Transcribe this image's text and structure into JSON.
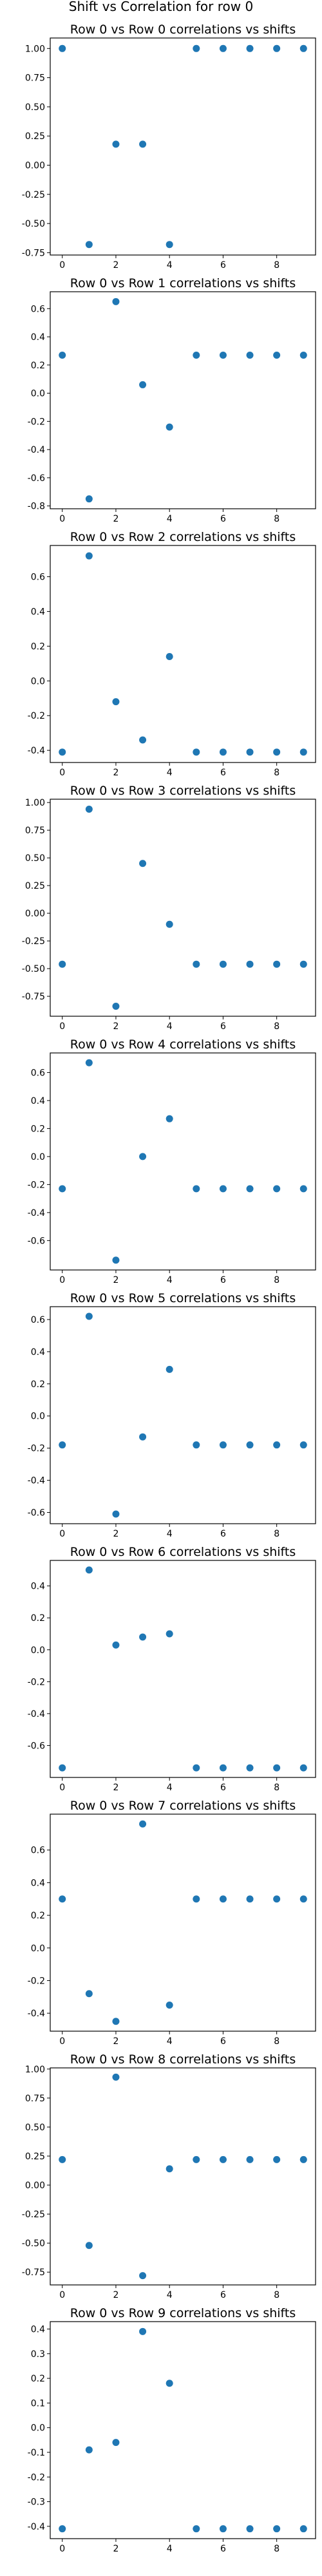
{
  "figure": {
    "suptitle": "Shift vs Correlation for row 0"
  },
  "chart_data": [
    {
      "type": "scatter",
      "title": "Row 0 vs Row 0 correlations vs shifts",
      "x": [
        0,
        1,
        2,
        3,
        4,
        5,
        6,
        7,
        8,
        9
      ],
      "y": [
        1.0,
        -0.68,
        0.18,
        0.18,
        -0.68,
        1.0,
        1.0,
        1.0,
        1.0,
        1.0
      ],
      "xlim": [
        -0.45,
        9.45
      ],
      "ylim": [
        -0.77,
        1.09
      ],
      "xticks": [
        0,
        2,
        4,
        6,
        8
      ],
      "yticks": [
        -0.75,
        -0.5,
        -0.25,
        0.0,
        0.25,
        0.5,
        0.75,
        1.0
      ],
      "ytick_labels": [
        "-0.75",
        "-0.50",
        "-0.25",
        "0.00",
        "0.25",
        "0.50",
        "0.75",
        "1.00"
      ],
      "marker_color": "#1f77b4"
    },
    {
      "type": "scatter",
      "title": "Row 0 vs Row 1 correlations vs shifts",
      "x": [
        0,
        1,
        2,
        3,
        4,
        5,
        6,
        7,
        8,
        9
      ],
      "y": [
        0.27,
        -0.75,
        0.65,
        0.06,
        -0.24,
        0.27,
        0.27,
        0.27,
        0.27,
        0.27
      ],
      "xlim": [
        -0.45,
        9.45
      ],
      "ylim": [
        -0.82,
        0.72
      ],
      "xticks": [
        0,
        2,
        4,
        6,
        8
      ],
      "yticks": [
        -0.8,
        -0.6,
        -0.4,
        -0.2,
        0.0,
        0.2,
        0.4,
        0.6
      ],
      "ytick_labels": [
        "-0.8",
        "-0.6",
        "-0.4",
        "-0.2",
        "0.0",
        "0.2",
        "0.4",
        "0.6"
      ],
      "marker_color": "#1f77b4"
    },
    {
      "type": "scatter",
      "title": "Row 0 vs Row 2 correlations vs shifts",
      "x": [
        0,
        1,
        2,
        3,
        4,
        5,
        6,
        7,
        8,
        9
      ],
      "y": [
        -0.41,
        0.72,
        -0.12,
        -0.34,
        0.14,
        -0.41,
        -0.41,
        -0.41,
        -0.41,
        -0.41
      ],
      "xlim": [
        -0.45,
        9.45
      ],
      "ylim": [
        -0.47,
        0.78
      ],
      "xticks": [
        0,
        2,
        4,
        6,
        8
      ],
      "yticks": [
        -0.4,
        -0.2,
        0.0,
        0.2,
        0.4,
        0.6
      ],
      "ytick_labels": [
        "-0.4",
        "-0.2",
        "0.0",
        "0.2",
        "0.4",
        "0.6"
      ],
      "marker_color": "#1f77b4"
    },
    {
      "type": "scatter",
      "title": "Row 0 vs Row 3 correlations vs shifts",
      "x": [
        0,
        1,
        2,
        3,
        4,
        5,
        6,
        7,
        8,
        9
      ],
      "y": [
        -0.46,
        0.94,
        -0.84,
        0.45,
        -0.1,
        -0.46,
        -0.46,
        -0.46,
        -0.46,
        -0.46
      ],
      "xlim": [
        -0.45,
        9.45
      ],
      "ylim": [
        -0.93,
        1.03
      ],
      "xticks": [
        0,
        2,
        4,
        6,
        8
      ],
      "yticks": [
        -0.75,
        -0.5,
        -0.25,
        0.0,
        0.25,
        0.5,
        0.75,
        1.0
      ],
      "ytick_labels": [
        "-0.75",
        "-0.50",
        "-0.25",
        "0.00",
        "0.25",
        "0.50",
        "0.75",
        "1.00"
      ],
      "marker_color": "#1f77b4"
    },
    {
      "type": "scatter",
      "title": "Row 0 vs Row 4 correlations vs shifts",
      "x": [
        0,
        1,
        2,
        3,
        4,
        5,
        6,
        7,
        8,
        9
      ],
      "y": [
        -0.23,
        0.67,
        -0.74,
        0.0,
        0.27,
        -0.23,
        -0.23,
        -0.23,
        -0.23,
        -0.23
      ],
      "xlim": [
        -0.45,
        9.45
      ],
      "ylim": [
        -0.81,
        0.74
      ],
      "xticks": [
        0,
        2,
        4,
        6,
        8
      ],
      "yticks": [
        -0.6,
        -0.4,
        -0.2,
        0.0,
        0.2,
        0.4,
        0.6
      ],
      "ytick_labels": [
        "-0.6",
        "-0.4",
        "-0.2",
        "0.0",
        "0.2",
        "0.4",
        "0.6"
      ],
      "marker_color": "#1f77b4"
    },
    {
      "type": "scatter",
      "title": "Row 0 vs Row 5 correlations vs shifts",
      "x": [
        0,
        1,
        2,
        3,
        4,
        5,
        6,
        7,
        8,
        9
      ],
      "y": [
        -0.18,
        0.62,
        -0.61,
        -0.13,
        0.29,
        -0.18,
        -0.18,
        -0.18,
        -0.18,
        -0.18
      ],
      "xlim": [
        -0.45,
        9.45
      ],
      "ylim": [
        -0.67,
        0.68
      ],
      "xticks": [
        0,
        2,
        4,
        6,
        8
      ],
      "yticks": [
        -0.6,
        -0.4,
        -0.2,
        0.0,
        0.2,
        0.4,
        0.6
      ],
      "ytick_labels": [
        "-0.6",
        "-0.4",
        "-0.2",
        "0.0",
        "0.2",
        "0.4",
        "0.6"
      ],
      "marker_color": "#1f77b4"
    },
    {
      "type": "scatter",
      "title": "Row 0 vs Row 6 correlations vs shifts",
      "x": [
        0,
        1,
        2,
        3,
        4,
        5,
        6,
        7,
        8,
        9
      ],
      "y": [
        -0.74,
        0.5,
        0.03,
        0.08,
        0.1,
        -0.74,
        -0.74,
        -0.74,
        -0.74,
        -0.74
      ],
      "xlim": [
        -0.45,
        9.45
      ],
      "ylim": [
        -0.8,
        0.56
      ],
      "xticks": [
        0,
        2,
        4,
        6,
        8
      ],
      "yticks": [
        -0.6,
        -0.4,
        -0.2,
        0.0,
        0.2,
        0.4
      ],
      "ytick_labels": [
        "-0.6",
        "-0.4",
        "-0.2",
        "0.0",
        "0.2",
        "0.4"
      ],
      "marker_color": "#1f77b4"
    },
    {
      "type": "scatter",
      "title": "Row 0 vs Row 7 correlations vs shifts",
      "x": [
        0,
        1,
        2,
        3,
        4,
        5,
        6,
        7,
        8,
        9
      ],
      "y": [
        0.3,
        -0.28,
        -0.45,
        0.76,
        -0.35,
        0.3,
        0.3,
        0.3,
        0.3,
        0.3
      ],
      "xlim": [
        -0.45,
        9.45
      ],
      "ylim": [
        -0.51,
        0.82
      ],
      "xticks": [
        0,
        2,
        4,
        6,
        8
      ],
      "yticks": [
        -0.4,
        -0.2,
        0.0,
        0.2,
        0.4,
        0.6
      ],
      "ytick_labels": [
        "-0.4",
        "-0.2",
        "0.0",
        "0.2",
        "0.4",
        "0.6"
      ],
      "marker_color": "#1f77b4"
    },
    {
      "type": "scatter",
      "title": "Row 0 vs Row 8 correlations vs shifts",
      "x": [
        0,
        1,
        2,
        3,
        4,
        5,
        6,
        7,
        8,
        9
      ],
      "y": [
        0.22,
        -0.52,
        0.93,
        -0.78,
        0.14,
        0.22,
        0.22,
        0.22,
        0.22,
        0.22
      ],
      "xlim": [
        -0.45,
        9.45
      ],
      "ylim": [
        -0.86,
        1.01
      ],
      "xticks": [
        0,
        2,
        4,
        6,
        8
      ],
      "yticks": [
        -0.75,
        -0.5,
        -0.25,
        0.0,
        0.25,
        0.5,
        0.75,
        1.0
      ],
      "ytick_labels": [
        "-0.75",
        "-0.50",
        "-0.25",
        "0.00",
        "0.25",
        "0.50",
        "0.75",
        "1.00"
      ],
      "marker_color": "#1f77b4"
    },
    {
      "type": "scatter",
      "title": "Row 0 vs Row 9 correlations vs shifts",
      "x": [
        0,
        1,
        2,
        3,
        4,
        5,
        6,
        7,
        8,
        9
      ],
      "y": [
        -0.41,
        -0.09,
        -0.06,
        0.39,
        0.18,
        -0.41,
        -0.41,
        -0.41,
        -0.41,
        -0.41
      ],
      "xlim": [
        -0.45,
        9.45
      ],
      "ylim": [
        -0.45,
        0.43
      ],
      "xticks": [
        0,
        2,
        4,
        6,
        8
      ],
      "yticks": [
        -0.4,
        -0.3,
        -0.2,
        -0.1,
        0.0,
        0.1,
        0.2,
        0.3,
        0.4
      ],
      "ytick_labels": [
        "-0.4",
        "-0.3",
        "-0.2",
        "-0.1",
        "0.0",
        "0.1",
        "0.2",
        "0.3",
        "0.4"
      ],
      "marker_color": "#1f77b4"
    }
  ]
}
